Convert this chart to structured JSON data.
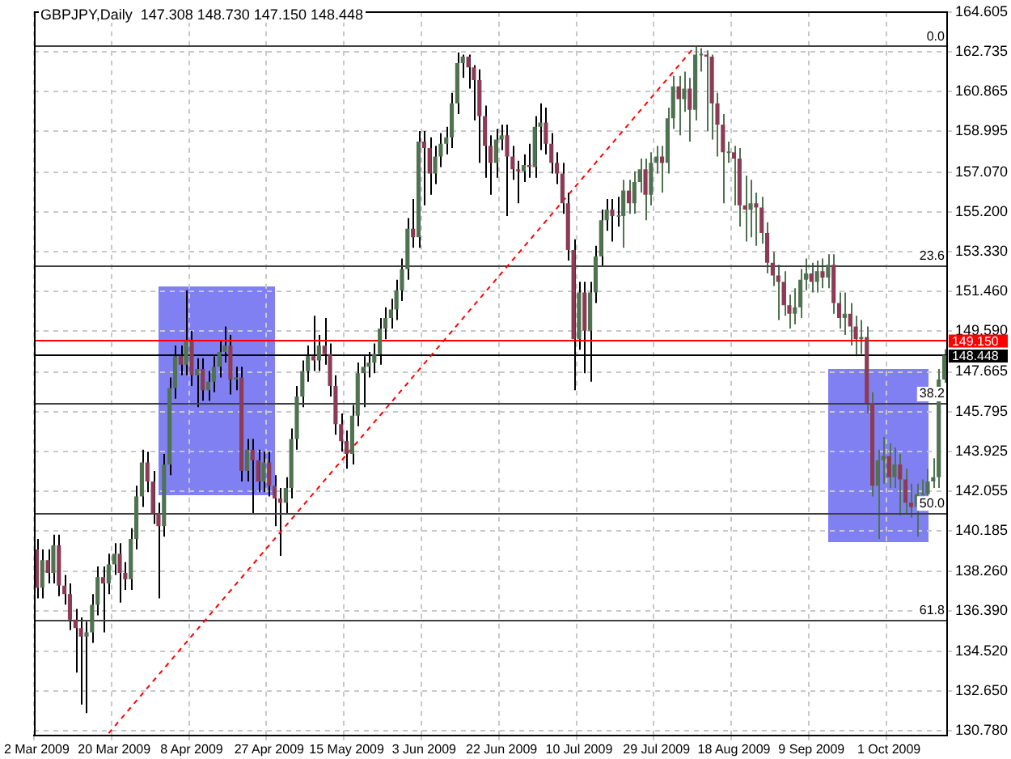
{
  "chart_data": {
    "type": "candlestick",
    "title": "GBPJPY,Daily  147.308 148.730 147.150 148.448",
    "categories": [
      "2 Mar 2009",
      null,
      null,
      null,
      null,
      null,
      null,
      null,
      null,
      null,
      null,
      null,
      null,
      null,
      "20 Mar 2009",
      null,
      null,
      null,
      null,
      null,
      null,
      null,
      null,
      null,
      null,
      null,
      null,
      null,
      "8 Apr 2009",
      null,
      null,
      null,
      null,
      null,
      null,
      null,
      null,
      null,
      null,
      null,
      null,
      null,
      "27 Apr 2009",
      null,
      null,
      null,
      null,
      null,
      null,
      null,
      null,
      null,
      null,
      null,
      null,
      null,
      "15 May 2009",
      null,
      null,
      null,
      null,
      null,
      null,
      null,
      null,
      null,
      null,
      null,
      null,
      null,
      "3 Jun 2009",
      null,
      null,
      null,
      null,
      null,
      null,
      null,
      null,
      null,
      null,
      null,
      null,
      null,
      "22 Jun 2009",
      null,
      null,
      null,
      null,
      null,
      null,
      null,
      null,
      null,
      null,
      null,
      null,
      null,
      "10 Jul 2009",
      null,
      null,
      null,
      null,
      null,
      null,
      null,
      null,
      null,
      null,
      null,
      null,
      null,
      "29 Jul 2009",
      null,
      null,
      null,
      null,
      null,
      null,
      null,
      null,
      null,
      null,
      null,
      null,
      null,
      "18 Aug 2009",
      null,
      null,
      null,
      null,
      null,
      null,
      null,
      null,
      null,
      null,
      null,
      null,
      null,
      "9 Sep 2009",
      null,
      null,
      null,
      null,
      null,
      null,
      null,
      null,
      null,
      null,
      null,
      null,
      null,
      "1 Oct 2009",
      null,
      null,
      null,
      null,
      null,
      null,
      null,
      null,
      null,
      null
    ],
    "ohlc": [
      [
        139.3,
        139.8,
        137.0,
        137.5
      ],
      [
        137.5,
        139.3,
        137.0,
        138.8
      ],
      [
        138.8,
        139.3,
        137.7,
        138.2
      ],
      [
        138.2,
        140.0,
        137.7,
        139.5
      ],
      [
        139.5,
        140.0,
        137.1,
        137.6
      ],
      [
        137.6,
        138.1,
        136.7,
        137.2
      ],
      [
        137.2,
        137.7,
        135.5,
        136.0
      ],
      [
        136.0,
        136.5,
        133.5,
        135.6
      ],
      [
        135.6,
        136.1,
        132.0,
        135.2
      ],
      [
        135.2,
        135.9,
        131.6,
        135.4
      ],
      [
        135.4,
        137.2,
        134.9,
        136.7
      ],
      [
        136.7,
        138.5,
        136.2,
        138.0
      ],
      [
        138.0,
        138.5,
        135.4,
        137.7
      ],
      [
        137.7,
        139.1,
        137.2,
        138.6
      ],
      [
        138.6,
        139.6,
        138.1,
        139.1
      ],
      [
        139.1,
        139.6,
        136.8,
        138.2
      ],
      [
        138.2,
        138.7,
        137.4,
        137.9
      ],
      [
        137.9,
        140.3,
        137.4,
        139.8
      ],
      [
        139.8,
        142.3,
        139.3,
        141.8
      ],
      [
        141.8,
        144.0,
        141.3,
        143.4
      ],
      [
        143.4,
        143.9,
        142.0,
        142.5
      ],
      [
        142.5,
        143.0,
        140.5,
        141.0
      ],
      [
        141.0,
        141.5,
        137.0,
        140.4
      ],
      [
        140.4,
        143.8,
        139.9,
        143.3
      ],
      [
        143.3,
        147.4,
        142.8,
        146.9
      ],
      [
        146.9,
        148.9,
        146.4,
        148.4
      ],
      [
        148.4,
        148.9,
        147.5,
        148.0
      ],
      [
        148.0,
        151.5,
        147.5,
        149.1
      ],
      [
        149.1,
        149.6,
        147.0,
        147.5
      ],
      [
        147.5,
        148.3,
        146.0,
        147.8
      ],
      [
        147.8,
        148.3,
        146.3,
        146.8
      ],
      [
        146.8,
        147.7,
        146.3,
        147.2
      ],
      [
        147.2,
        148.4,
        146.7,
        147.9
      ],
      [
        147.9,
        149.1,
        147.4,
        148.6
      ],
      [
        148.6,
        149.8,
        148.1,
        148.9
      ],
      [
        148.9,
        149.4,
        146.6,
        147.3
      ],
      [
        147.3,
        147.9,
        146.8,
        147.4
      ],
      [
        147.4,
        147.9,
        142.5,
        143.0
      ],
      [
        143.0,
        144.5,
        142.5,
        144.0
      ],
      [
        144.0,
        144.5,
        141.0,
        143.5
      ],
      [
        143.5,
        144.0,
        142.0,
        142.5
      ],
      [
        142.5,
        143.9,
        142.0,
        143.4
      ],
      [
        143.4,
        143.9,
        141.8,
        142.3
      ],
      [
        142.3,
        142.8,
        140.4,
        141.7
      ],
      [
        141.7,
        142.2,
        139.0,
        141.5
      ],
      [
        141.5,
        142.7,
        141.0,
        142.2
      ],
      [
        142.2,
        145.0,
        141.7,
        144.5
      ],
      [
        144.5,
        147.0,
        144.0,
        146.5
      ],
      [
        146.5,
        148.2,
        146.0,
        147.7
      ],
      [
        147.7,
        148.9,
        147.2,
        148.4
      ],
      [
        148.4,
        150.3,
        147.7,
        148.2
      ],
      [
        148.2,
        149.4,
        147.7,
        148.9
      ],
      [
        148.9,
        150.2,
        148.0,
        148.5
      ],
      [
        148.5,
        149.0,
        146.5,
        147.0
      ],
      [
        147.0,
        147.5,
        144.7,
        145.2
      ],
      [
        145.2,
        145.7,
        143.9,
        144.4
      ],
      [
        144.4,
        144.9,
        143.1,
        143.8
      ],
      [
        143.8,
        146.1,
        143.3,
        145.6
      ],
      [
        145.6,
        148.1,
        145.1,
        147.6
      ],
      [
        147.6,
        148.4,
        146.0,
        147.9
      ],
      [
        147.9,
        148.6,
        147.4,
        148.1
      ],
      [
        148.1,
        149.0,
        147.6,
        148.5
      ],
      [
        148.5,
        150.2,
        148.0,
        149.7
      ],
      [
        149.7,
        150.7,
        149.2,
        150.2
      ],
      [
        150.2,
        151.1,
        149.7,
        150.6
      ],
      [
        150.6,
        152.0,
        150.1,
        151.5
      ],
      [
        151.5,
        153.0,
        151.0,
        152.5
      ],
      [
        152.5,
        154.9,
        152.0,
        154.4
      ],
      [
        154.4,
        155.8,
        153.5,
        154.0
      ],
      [
        154.0,
        159.0,
        153.5,
        158.5
      ],
      [
        158.5,
        159.0,
        155.5,
        158.2
      ],
      [
        158.2,
        158.7,
        156.0,
        157.0
      ],
      [
        157.0,
        158.3,
        156.5,
        157.8
      ],
      [
        157.8,
        158.9,
        157.3,
        158.4
      ],
      [
        158.4,
        159.2,
        157.9,
        158.7
      ],
      [
        158.7,
        160.8,
        158.2,
        160.3
      ],
      [
        160.3,
        162.7,
        159.8,
        162.2
      ],
      [
        162.2,
        162.6,
        161.5,
        162.5
      ],
      [
        162.5,
        162.6,
        161.0,
        162.0
      ],
      [
        162.0,
        162.1,
        159.5,
        161.4
      ],
      [
        161.4,
        161.9,
        157.5,
        159.7
      ],
      [
        159.7,
        160.2,
        156.8,
        158.3
      ],
      [
        158.3,
        158.8,
        156.0,
        157.5
      ],
      [
        157.5,
        159.1,
        156.8,
        158.6
      ],
      [
        158.6,
        159.3,
        158.1,
        158.8
      ],
      [
        158.8,
        159.3,
        155.0,
        157.8
      ],
      [
        157.8,
        158.3,
        156.7,
        157.2
      ],
      [
        157.2,
        157.6,
        155.6,
        157.1
      ],
      [
        157.1,
        157.9,
        156.6,
        157.4
      ],
      [
        157.4,
        158.4,
        156.8,
        157.3
      ],
      [
        157.3,
        159.7,
        156.8,
        159.2
      ],
      [
        159.2,
        160.3,
        158.1,
        159.4
      ],
      [
        159.4,
        160.1,
        157.9,
        158.4
      ],
      [
        158.4,
        158.9,
        157.0,
        157.5
      ],
      [
        157.5,
        158.0,
        156.5,
        157.0
      ],
      [
        157.0,
        157.5,
        155.1,
        155.6
      ],
      [
        155.6,
        156.1,
        152.9,
        153.4
      ],
      [
        153.4,
        153.9,
        146.8,
        149.2
      ],
      [
        149.2,
        151.9,
        148.7,
        151.4
      ],
      [
        151.4,
        151.9,
        147.6,
        149.6
      ],
      [
        149.6,
        151.9,
        147.2,
        151.4
      ],
      [
        151.4,
        153.6,
        150.9,
        153.1
      ],
      [
        153.1,
        155.3,
        152.6,
        154.8
      ],
      [
        154.8,
        155.8,
        154.3,
        155.3
      ],
      [
        155.3,
        155.8,
        153.8,
        155.0
      ],
      [
        155.0,
        155.9,
        154.5,
        155.0
      ],
      [
        155.0,
        156.7,
        153.5,
        156.2
      ],
      [
        156.2,
        156.7,
        155.1,
        155.6
      ],
      [
        155.6,
        157.1,
        155.1,
        156.6
      ],
      [
        156.6,
        157.7,
        156.1,
        157.2
      ],
      [
        157.2,
        157.7,
        154.8,
        156.0
      ],
      [
        156.0,
        158.0,
        155.5,
        157.5
      ],
      [
        157.5,
        158.3,
        157.0,
        157.8
      ],
      [
        157.8,
        158.3,
        156.1,
        157.5
      ],
      [
        157.5,
        160.1,
        157.0,
        159.6
      ],
      [
        159.6,
        161.6,
        159.1,
        161.1
      ],
      [
        161.1,
        161.6,
        158.8,
        160.5
      ],
      [
        160.5,
        161.8,
        159.9,
        161.0
      ],
      [
        161.0,
        161.5,
        158.5,
        160.0
      ],
      [
        160.0,
        163.0,
        159.5,
        162.6
      ],
      [
        162.6,
        162.9,
        161.8,
        162.6
      ],
      [
        162.6,
        162.8,
        159.0,
        162.5
      ],
      [
        162.5,
        162.6,
        158.6,
        160.3
      ],
      [
        160.3,
        160.8,
        157.8,
        159.3
      ],
      [
        159.3,
        159.8,
        155.6,
        158.0
      ],
      [
        158.0,
        158.5,
        157.5,
        158.0
      ],
      [
        158.0,
        158.3,
        155.5,
        157.7
      ],
      [
        157.7,
        158.2,
        154.5,
        155.5
      ],
      [
        155.5,
        156.9,
        153.8,
        155.3
      ],
      [
        155.3,
        156.7,
        154.0,
        155.6
      ],
      [
        155.6,
        156.1,
        153.6,
        155.4
      ],
      [
        155.4,
        155.9,
        153.7,
        154.2
      ],
      [
        154.2,
        154.7,
        152.3,
        152.8
      ],
      [
        152.8,
        153.3,
        151.7,
        152.2
      ],
      [
        152.2,
        152.7,
        150.1,
        151.9
      ],
      [
        151.9,
        152.4,
        150.3,
        150.8
      ],
      [
        150.8,
        151.3,
        149.7,
        150.4
      ],
      [
        150.4,
        151.6,
        149.9,
        150.7
      ],
      [
        150.7,
        152.5,
        150.2,
        152.0
      ],
      [
        152.0,
        153.0,
        151.5,
        152.3
      ],
      [
        152.3,
        152.8,
        151.4,
        151.9
      ],
      [
        151.9,
        152.9,
        151.4,
        152.4
      ],
      [
        152.4,
        153.0,
        151.6,
        152.1
      ],
      [
        152.1,
        153.2,
        151.6,
        152.7
      ],
      [
        152.7,
        153.2,
        150.4,
        150.9
      ],
      [
        150.9,
        151.4,
        149.7,
        150.2
      ],
      [
        150.2,
        151.4,
        149.4,
        150.4
      ],
      [
        150.4,
        150.9,
        148.9,
        149.8
      ],
      [
        149.8,
        150.3,
        148.4,
        149.2
      ],
      [
        149.2,
        150.1,
        148.5,
        149.3
      ],
      [
        149.3,
        149.8,
        145.7,
        146.2
      ],
      [
        146.2,
        146.7,
        141.8,
        142.3
      ],
      [
        142.3,
        144.0,
        139.8,
        143.5
      ],
      [
        143.5,
        144.6,
        142.4,
        143.7
      ],
      [
        143.7,
        144.3,
        142.2,
        142.7
      ],
      [
        142.7,
        144.1,
        142.2,
        143.3
      ],
      [
        143.3,
        143.8,
        140.9,
        142.6
      ],
      [
        142.6,
        143.1,
        141.0,
        141.5
      ],
      [
        141.5,
        142.4,
        140.8,
        141.3
      ],
      [
        141.3,
        142.4,
        139.9,
        141.9
      ],
      [
        141.9,
        142.6,
        141.85,
        141.9
      ],
      [
        141.9,
        143.1,
        141.85,
        142.5
      ],
      [
        142.5,
        143.6,
        142.2,
        142.7
      ],
      [
        142.7,
        147.8,
        142.2,
        147.308
      ],
      [
        147.308,
        148.73,
        147.15,
        148.448
      ]
    ],
    "colors": [
      "#8c3b55",
      "#4f7250",
      "#8c3b55",
      "#4f7250",
      "#8c3b55",
      "#8c3b55",
      "#8c3b55",
      "#8c3b55",
      "#8c3b55",
      "#4f7250",
      "#4f7250",
      "#4f7250",
      "#8c3b55",
      "#4f7250",
      "#4f7250",
      "#8c3b55",
      "#8c3b55",
      "#4f7250",
      "#4f7250",
      "#4f7250",
      "#8c3b55",
      "#8c3b55",
      "#8c3b55",
      "#4f7250",
      "#4f7250",
      "#4f7250",
      "#8c3b55",
      "#4f7250",
      "#8c3b55",
      "#4f7250",
      "#8c3b55",
      "#4f7250",
      "#4f7250",
      "#4f7250",
      "#4f7250",
      "#8c3b55",
      "#4f7250",
      "#8c3b55",
      "#4f7250",
      "#8c3b55",
      "#8c3b55",
      "#4f7250",
      "#8c3b55",
      "#8c3b55",
      "#8c3b55",
      "#4f7250",
      "#4f7250",
      "#4f7250",
      "#4f7250",
      "#4f7250",
      "#8c3b55",
      "#4f7250",
      "#8c3b55",
      "#8c3b55",
      "#8c3b55",
      "#8c3b55",
      "#8c3b55",
      "#4f7250",
      "#4f7250",
      "#4f7250",
      "#4f7250",
      "#4f7250",
      "#4f7250",
      "#4f7250",
      "#4f7250",
      "#4f7250",
      "#4f7250",
      "#4f7250",
      "#8c3b55",
      "#4f7250",
      "#8c3b55",
      "#8c3b55",
      "#4f7250",
      "#4f7250",
      "#4f7250",
      "#4f7250",
      "#4f7250",
      "#4f7250",
      "#8c3b55",
      "#8c3b55",
      "#8c3b55",
      "#8c3b55",
      "#8c3b55",
      "#4f7250",
      "#4f7250",
      "#8c3b55",
      "#8c3b55",
      "#8c3b55",
      "#4f7250",
      "#8c3b55",
      "#4f7250",
      "#4f7250",
      "#8c3b55",
      "#8c3b55",
      "#8c3b55",
      "#8c3b55",
      "#8c3b55",
      "#8c3b55",
      "#4f7250",
      "#8c3b55",
      "#4f7250",
      "#4f7250",
      "#4f7250",
      "#4f7250",
      "#8c3b55",
      "#4f7250",
      "#4f7250",
      "#8c3b55",
      "#4f7250",
      "#4f7250",
      "#8c3b55",
      "#4f7250",
      "#4f7250",
      "#8c3b55",
      "#4f7250",
      "#4f7250",
      "#8c3b55",
      "#4f7250",
      "#8c3b55",
      "#4f7250",
      "#4f7250",
      "#8c3b55",
      "#8c3b55",
      "#8c3b55",
      "#8c3b55",
      "#4f7250",
      "#8c3b55",
      "#8c3b55",
      "#8c3b55",
      "#4f7250",
      "#8c3b55",
      "#8c3b55",
      "#8c3b55",
      "#8c3b55",
      "#8c3b55",
      "#8c3b55",
      "#8c3b55",
      "#4f7250",
      "#4f7250",
      "#4f7250",
      "#8c3b55",
      "#4f7250",
      "#8c3b55",
      "#4f7250",
      "#8c3b55",
      "#8c3b55",
      "#4f7250",
      "#8c3b55",
      "#8c3b55",
      "#4f7250",
      "#8c3b55",
      "#8c3b55",
      "#4f7250",
      "#4f7250",
      "#8c3b55",
      "#4f7250",
      "#8c3b55",
      "#8c3b55",
      "#8c3b55",
      "#4f7250",
      "#4f7250",
      "#4f7250",
      "#4f7250",
      "#4f7250",
      "#4f7250"
    ],
    "series": [
      {
        "type": "line",
        "color": "#ff0000",
        "line_style": "dashed",
        "values": [
          null,
          null,
          null,
          null,
          null,
          null,
          null,
          null,
          null,
          null,
          null,
          null,
          null,
          130.65,
          null,
          null,
          null,
          null,
          null,
          null,
          null,
          null,
          null,
          null,
          null,
          null,
          null,
          null,
          null,
          null,
          null,
          null,
          null,
          null,
          null,
          null,
          null,
          null,
          null,
          null,
          null,
          null,
          null,
          null,
          null,
          null,
          null,
          null,
          null,
          null,
          null,
          null,
          null,
          null,
          null,
          null,
          null,
          null,
          null,
          null,
          null,
          null,
          null,
          null,
          null,
          null,
          null,
          null,
          null,
          null,
          null,
          null,
          null,
          null,
          null,
          null,
          null,
          null,
          null,
          null,
          null,
          null,
          null,
          null,
          null,
          null,
          null,
          null,
          null,
          null,
          null,
          null,
          null,
          null,
          null,
          null,
          null,
          null,
          null,
          null,
          null,
          null,
          null,
          null,
          null,
          null,
          null,
          null,
          null,
          null,
          null,
          null,
          null,
          null,
          null,
          null,
          null,
          null,
          null,
          163.0,
          null,
          null,
          null,
          null,
          null,
          null,
          null,
          null,
          null,
          null,
          null,
          null,
          null,
          null,
          null,
          null,
          null,
          null,
          null,
          null,
          null,
          null,
          null,
          null,
          null,
          null,
          null,
          null,
          null,
          null,
          null,
          null,
          null,
          null,
          null,
          null,
          null,
          null,
          null,
          null,
          null,
          null,
          null,
          null,
          null
        ]
      }
    ],
    "ylim": [
      130.55,
      164.605
    ],
    "yticks": [
      {
        "value": 130.78,
        "label": "130.780"
      },
      {
        "value": 132.65,
        "label": "132.650"
      },
      {
        "value": 134.52,
        "label": "134.520"
      },
      {
        "value": 136.39,
        "label": "136.390"
      },
      {
        "value": 138.26,
        "label": "138.260"
      },
      {
        "value": 140.185,
        "label": "140.185"
      },
      {
        "value": 142.055,
        "label": "142.055"
      },
      {
        "value": 143.925,
        "label": "143.925"
      },
      {
        "value": 145.795,
        "label": "145.795"
      },
      {
        "value": 147.665,
        "label": "147.665"
      },
      {
        "value": 149.59,
        "label": "149.590"
      },
      {
        "value": 151.46,
        "label": "151.460"
      },
      {
        "value": 153.33,
        "label": "153.330"
      },
      {
        "value": 155.2,
        "label": "155.200"
      },
      {
        "value": 157.07,
        "label": "157.070"
      },
      {
        "value": 158.995,
        "label": "158.995"
      },
      {
        "value": 160.865,
        "label": "160.865"
      },
      {
        "value": 162.735,
        "label": "162.735"
      },
      {
        "value": 164.605,
        "label": "164.605"
      }
    ],
    "annotations": [
      {
        "text": "0.0",
        "y": 163.0
      },
      {
        "text": "23.6",
        "y": 152.7
      },
      {
        "text": "38.2",
        "y": 146.2
      },
      {
        "text": "50.0",
        "y": 141.05
      },
      {
        "text": "61.8",
        "y": 136.0
      }
    ],
    "ref_lines": [
      {
        "axis": "y",
        "value": 163.0
      },
      {
        "axis": "y",
        "value": 152.7
      },
      {
        "axis": "y",
        "value": 146.2
      },
      {
        "axis": "y",
        "value": 141.05
      },
      {
        "axis": "y",
        "value": 136.0
      },
      {
        "axis": "y",
        "value": 149.15,
        "label": "149.150",
        "color": "#ff0000"
      },
      {
        "axis": "y",
        "value": 148.448,
        "label": "148.448",
        "color": "#000000"
      }
    ],
    "grid": true,
    "legend": false
  }
}
